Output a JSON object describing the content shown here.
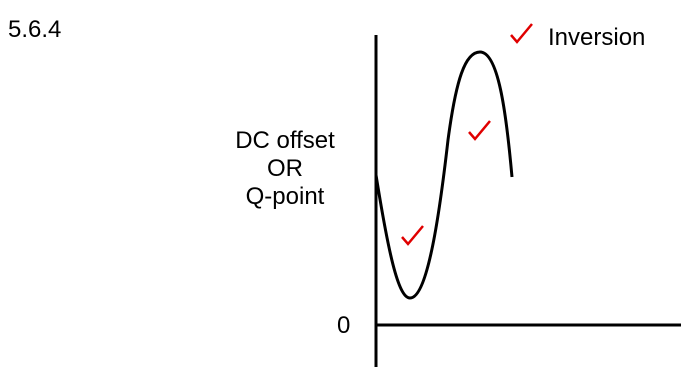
{
  "question_number": "5.6.4",
  "labels": {
    "dc_offset": "DC offset",
    "or": "OR",
    "q_point": "Q-point",
    "zero": "0",
    "inversion": "Inversion"
  },
  "colors": {
    "curve": "#000000",
    "axes": "#000000",
    "checkmark": "#e00000"
  },
  "icons": [
    "checkmark-icon",
    "checkmark-icon",
    "checkmark-icon"
  ]
}
